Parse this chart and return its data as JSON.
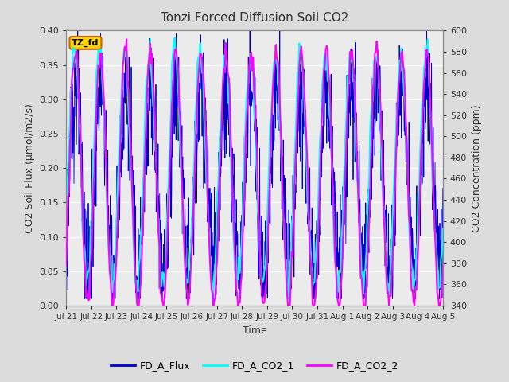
{
  "title": "Tonzi Forced Diffusion Soil CO2",
  "xlabel": "Time",
  "ylabel_left": "CO2 Soil Flux (μmol/m2/s)",
  "ylabel_right": "CO2 Concentration (ppm)",
  "ylim_left": [
    0.0,
    0.4
  ],
  "ylim_right": [
    340,
    600
  ],
  "yticks_left": [
    0.0,
    0.05,
    0.1,
    0.15,
    0.2,
    0.25,
    0.3,
    0.35,
    0.4
  ],
  "yticks_right": [
    340,
    360,
    380,
    400,
    420,
    440,
    460,
    480,
    500,
    520,
    540,
    560,
    580,
    600
  ],
  "x_labels": [
    "Jul 21",
    "Jul 22",
    "Jul 23",
    "Jul 24",
    "Jul 25",
    "Jul 26",
    "Jul 27",
    "Jul 28",
    "Jul 29",
    "Jul 30",
    "Jul 31",
    "Aug 1",
    "Aug 2",
    "Aug 3",
    "Aug 4",
    "Aug 5"
  ],
  "bg_color": "#dcdcdc",
  "plot_bg_color": "#ebebeb",
  "legend_labels": [
    "FD_A_Flux",
    "FD_A_CO2_1",
    "FD_A_CO2_2"
  ],
  "flux_color": "#0000CD",
  "co2_1_color": "#00FFFF",
  "co2_2_color": "#FF00FF",
  "annotation_text": "TZ_fd",
  "annotation_bg": "#FFD700",
  "annotation_border": "#CC6600",
  "n_days": 15,
  "n_points_flux": 1500,
  "n_points_co2": 400,
  "grid_color": "white",
  "flux_lw": 0.6,
  "co2_lw": 1.5
}
